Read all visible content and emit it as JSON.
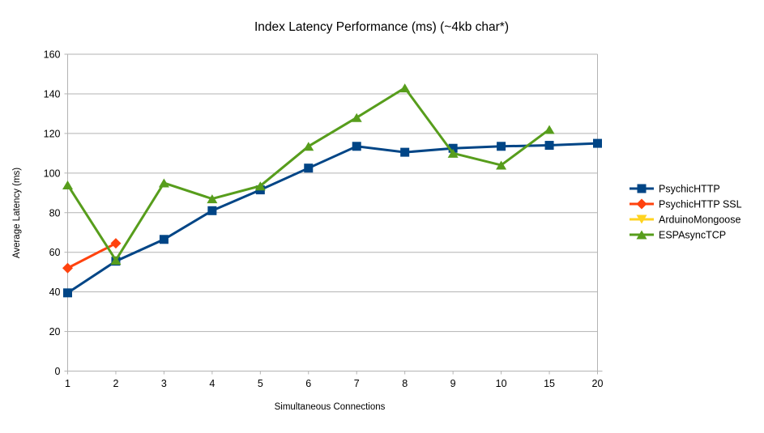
{
  "chart_data": {
    "type": "line",
    "title": "Index Latency Performance (ms) (~4kb char*)",
    "xlabel": "Simultaneous Connections",
    "ylabel": "Average Latency (ms)",
    "ylim": [
      0,
      160
    ],
    "yticks": [
      0,
      20,
      40,
      60,
      80,
      100,
      120,
      140,
      160
    ],
    "categories": [
      "1",
      "2",
      "3",
      "4",
      "5",
      "6",
      "7",
      "8",
      "9",
      "10",
      "15",
      "20"
    ],
    "grid": "horizontal-only",
    "grid_color": "#b3b3b3",
    "axis_color": "#b3b3b3",
    "text_color": "#000000",
    "background_color": "#ffffff",
    "legend_position": "right",
    "series": [
      {
        "name": "PsychicHTTP",
        "color": "#004586",
        "marker": "square",
        "values": [
          39.5,
          55.5,
          66.5,
          81,
          91.5,
          102.5,
          113.5,
          110.5,
          112.5,
          113.5,
          114,
          115
        ]
      },
      {
        "name": "PsychicHTTP SSL",
        "color": "#FF420E",
        "marker": "diamond",
        "values": [
          52,
          64.5,
          null,
          null,
          null,
          null,
          null,
          null,
          null,
          null,
          null,
          null
        ]
      },
      {
        "name": "ArduinoMongoose",
        "color": "#FFD320",
        "marker": "triangle-down",
        "values": [
          null,
          null,
          null,
          null,
          null,
          null,
          null,
          null,
          null,
          null,
          null,
          null
        ]
      },
      {
        "name": "ESPAsyncTCP",
        "color": "#579D1C",
        "marker": "triangle-up",
        "values": [
          94,
          56,
          95,
          87,
          93.5,
          113.5,
          128,
          143,
          110,
          104,
          122,
          null
        ]
      }
    ]
  }
}
